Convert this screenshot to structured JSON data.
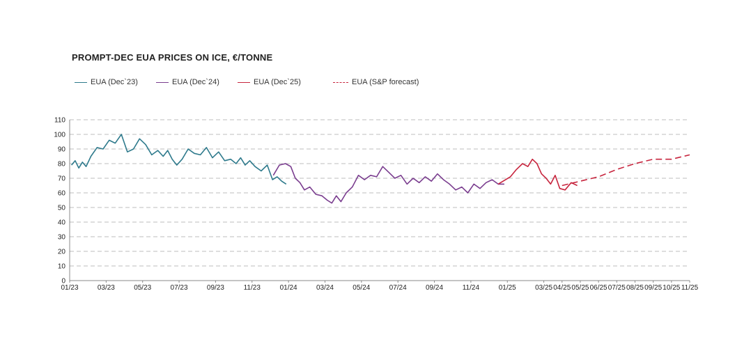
{
  "chart_data": {
    "type": "line",
    "title": "PROMPT-DEC EUA PRICES ON ICE, €/TONNE",
    "xlabel": "",
    "ylabel": "",
    "ylim": [
      0,
      110
    ],
    "yticks": [
      "0",
      "10",
      "20",
      "30",
      "40",
      "50",
      "60",
      "70",
      "80",
      "90",
      "100",
      "110"
    ],
    "xticks": [
      "01/23",
      "03/23",
      "05/23",
      "07/23",
      "09/23",
      "11/23",
      "01/24",
      "03/24",
      "05/24",
      "07/24",
      "09/24",
      "11/24",
      "01/25",
      "03/25",
      "04/25",
      "05/25",
      "06/25",
      "07/25",
      "08/25",
      "09/25",
      "10/25",
      "11/25"
    ],
    "grid": "horizontal dashed",
    "legend_position": "top",
    "series": [
      {
        "name": "EUA (Dec`23)",
        "color": "#2e7a8c",
        "style": "solid",
        "x": [
          "01/23",
          "01/23",
          "01/23",
          "01/23",
          "01/23",
          "02/23",
          "02/23",
          "02/23",
          "03/23",
          "03/23",
          "03/23",
          "04/23",
          "04/23",
          "04/23",
          "05/23",
          "05/23",
          "05/23",
          "06/23",
          "06/23",
          "06/23",
          "06/23",
          "07/23",
          "07/23",
          "07/23",
          "08/23",
          "08/23",
          "08/23",
          "09/23",
          "09/23",
          "09/23",
          "10/23",
          "10/23",
          "10/23",
          "10/23",
          "11/23",
          "11/23",
          "11/23",
          "12/23",
          "12/23",
          "12/23",
          "12/23"
        ],
        "values": [
          79,
          82,
          77,
          81,
          78,
          85,
          91,
          90,
          96,
          94,
          100,
          88,
          90,
          97,
          93,
          86,
          89,
          85,
          89,
          83,
          79,
          83,
          90,
          87,
          86,
          91,
          84,
          88,
          82,
          83,
          80,
          84,
          79,
          82,
          78,
          75,
          79,
          69,
          71,
          68,
          66
        ]
      },
      {
        "name": "EUA (Dec`24)",
        "color": "#7a3d8f",
        "style": "solid",
        "x": [
          "12/23",
          "12/23",
          "12/23",
          "01/24",
          "01/24",
          "01/24",
          "01/24",
          "02/24",
          "02/24",
          "02/24",
          "03/24",
          "03/24",
          "03/24",
          "03/24",
          "04/24",
          "04/24",
          "04/24",
          "05/24",
          "05/24",
          "05/24",
          "06/24",
          "06/24",
          "06/24",
          "07/24",
          "07/24",
          "07/24",
          "08/24",
          "08/24",
          "08/24",
          "09/24",
          "09/24",
          "09/24",
          "10/24",
          "10/24",
          "10/24",
          "11/24",
          "11/24",
          "11/24",
          "12/24",
          "12/24",
          "12/24"
        ],
        "values": [
          72,
          79,
          80,
          78,
          70,
          67,
          62,
          64,
          59,
          58,
          55,
          53,
          58,
          54,
          60,
          64,
          72,
          69,
          72,
          71,
          78,
          74,
          70,
          72,
          66,
          70,
          67,
          71,
          68,
          73,
          69,
          66,
          62,
          64,
          60,
          66,
          63,
          67,
          69,
          66,
          66
        ]
      },
      {
        "name": "EUA (Dec`25)",
        "color": "#c7253e",
        "style": "solid",
        "x": [
          "12/24",
          "01/25",
          "01/25",
          "01/25",
          "02/25",
          "02/25",
          "02/25",
          "02/25",
          "03/25",
          "03/25",
          "03/25",
          "03/25",
          "04/25",
          "04/25",
          "04/25"
        ],
        "values": [
          66,
          71,
          76,
          80,
          78,
          83,
          80,
          73,
          70,
          66,
          72,
          63,
          62,
          67,
          65
        ]
      },
      {
        "name": "EUA (S&P forecast)",
        "color": "#c7253e",
        "style": "dashed",
        "x": [
          "04/25",
          "05/25",
          "06/25",
          "07/25",
          "08/25",
          "09/25",
          "10/25",
          "11/25"
        ],
        "values": [
          65,
          68,
          71,
          76,
          80,
          83,
          83,
          86
        ]
      }
    ]
  }
}
